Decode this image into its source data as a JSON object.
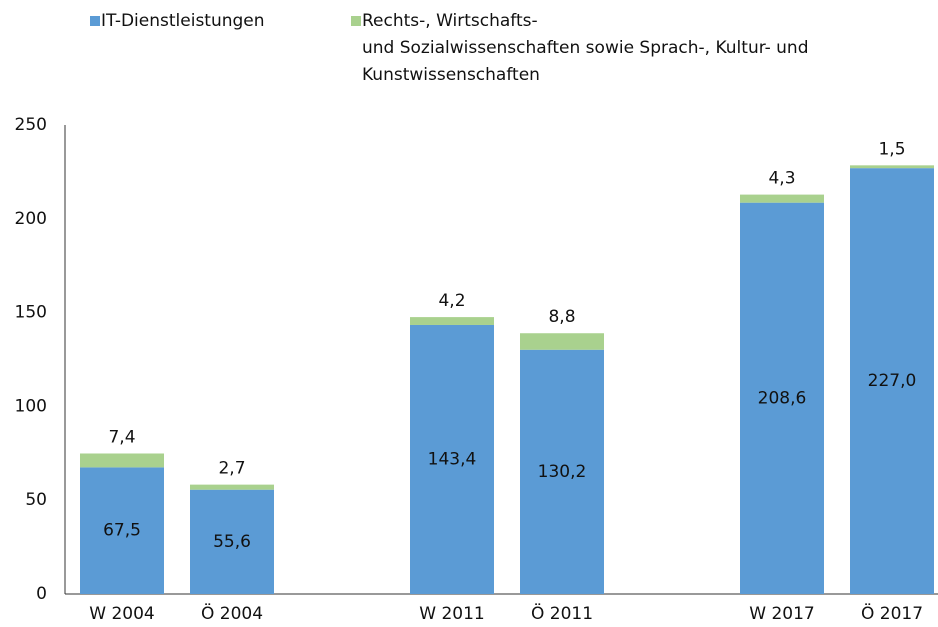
{
  "chart_data": {
    "type": "stacked_bar",
    "categories": [
      "W 2004",
      "Ö 2004",
      null,
      "W 2011",
      "Ö 2011",
      null,
      "W 2017",
      "Ö 2017"
    ],
    "series": [
      {
        "name": "IT-Dienstleistungen",
        "color": "#5b9bd5",
        "values": [
          67.5,
          55.6,
          null,
          143.4,
          130.2,
          null,
          208.6,
          227.0
        ],
        "value_labels": [
          "67,5",
          "55,6",
          null,
          "143,4",
          "130,2",
          null,
          "208,6",
          "227,0"
        ]
      },
      {
        "name": "Rechts-, Wirtschafts-\nund Sozialwissenschaften sowie Sprach-, Kultur- und\nKunstwissenschaften",
        "color": "#a9d18e",
        "values": [
          7.4,
          2.7,
          null,
          4.2,
          8.8,
          null,
          4.3,
          1.5
        ],
        "value_labels": [
          "7,4",
          "2,7",
          null,
          "4,2",
          "8,8",
          null,
          "4,3",
          "1,5"
        ]
      }
    ],
    "ylim": [
      0,
      250
    ],
    "yticks": [
      0,
      50,
      100,
      150,
      200,
      250
    ],
    "grid": false
  }
}
